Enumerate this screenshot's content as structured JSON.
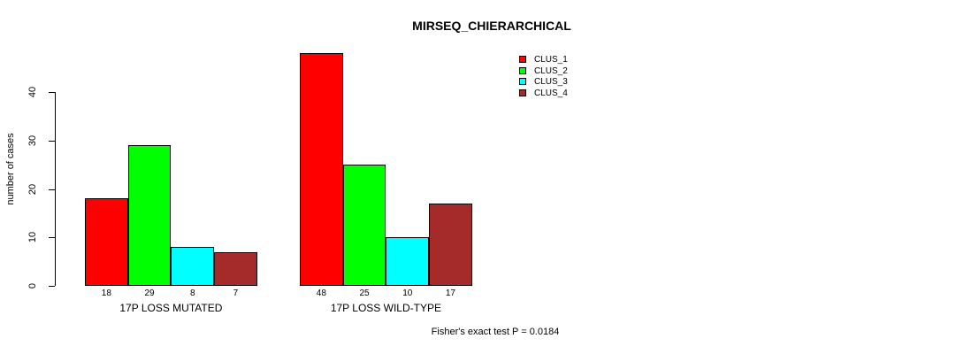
{
  "chart_data": {
    "type": "bar",
    "title": "MIRSEQ_CHIERARCHICAL",
    "ylabel": "number of cases",
    "xlabel": "",
    "ylim": [
      0,
      40
    ],
    "yticks": [
      0,
      10,
      20,
      30,
      40
    ],
    "grid": false,
    "legend_position": "top-right",
    "categories": [
      "17P LOSS MUTATED",
      "17P LOSS WILD-TYPE"
    ],
    "series": [
      {
        "name": "CLUS_1",
        "color": "#FF0000",
        "values": [
          18,
          48
        ]
      },
      {
        "name": "CLUS_2",
        "color": "#00FF00",
        "values": [
          29,
          25
        ]
      },
      {
        "name": "CLUS_3",
        "color": "#00FFFF",
        "values": [
          8,
          10
        ]
      },
      {
        "name": "CLUS_4",
        "color": "#A52A2A",
        "values": [
          7,
          17
        ]
      }
    ],
    "bar_value_labels": [
      [
        18,
        29,
        8,
        7
      ],
      [
        48,
        25,
        10,
        17
      ]
    ],
    "annotation": "Fisher's exact test P = 0.0184",
    "colors": {
      "background": "#FFFFFF",
      "axis": "#000000",
      "text": "#000000"
    }
  }
}
